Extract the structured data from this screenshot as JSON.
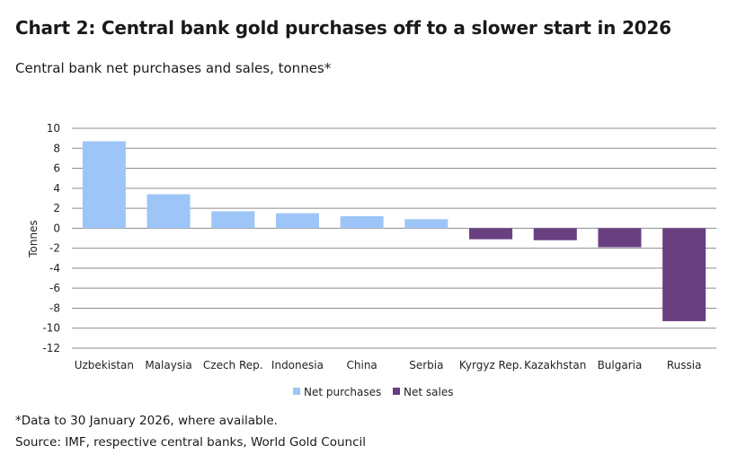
{
  "title": "Chart 2: Central bank gold purchases off to a slower start in 2026",
  "subtitle": "Central bank net purchases and sales, tonnes*",
  "footnote": "*Data to 30 January 2026, where available.",
  "source": "Source: IMF, respective central banks, World Gold Council",
  "colors": {
    "net_purchases": "#9ec5f7",
    "net_sales": "#6a3f82",
    "grid": "#8c8c8c"
  },
  "chart_data": {
    "type": "bar",
    "categories": [
      "Uzbekistan",
      "Malaysia",
      "Czech Rep.",
      "Indonesia",
      "China",
      "Serbia",
      "Kyrgyz Rep.",
      "Kazakhstan",
      "Bulgaria",
      "Russia"
    ],
    "values": [
      8.7,
      3.4,
      1.7,
      1.5,
      1.2,
      0.9,
      -1.1,
      -1.2,
      -1.9,
      -9.3
    ],
    "ylabel": "Tonnes",
    "xlabel": "",
    "ylim": [
      -12,
      10
    ],
    "yticks": [
      10,
      8,
      6,
      4,
      2,
      0,
      -2,
      -4,
      -6,
      -8,
      -10,
      -12
    ],
    "grid": true,
    "legend": [
      "Net purchases",
      "Net sales"
    ],
    "legend_placement": "bottom-center"
  }
}
